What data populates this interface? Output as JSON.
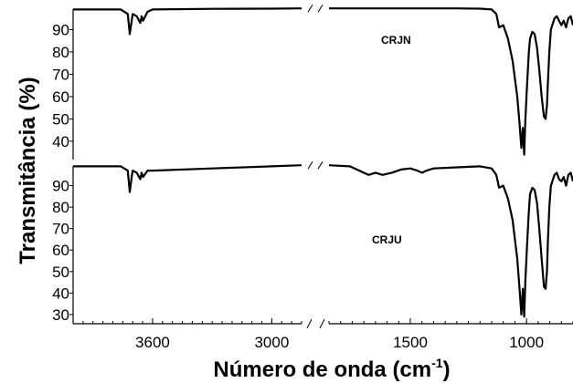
{
  "chart_data": {
    "type": "line",
    "ylabel": "Transmitância (%)",
    "xlabel_main": "Número de onda (cm",
    "xlabel_sup": "-1",
    "xlabel_close": ")",
    "x_ticks": [
      {
        "label": "3600",
        "value": 3600
      },
      {
        "label": "3000",
        "value": 3000
      },
      {
        "label": "1500",
        "value": 1500
      },
      {
        "label": "1000",
        "value": 1000
      }
    ],
    "x_segments": [
      {
        "range": [
          4000,
          2850
        ]
      },
      {
        "range": [
          1850,
          800
        ]
      }
    ],
    "panels": [
      {
        "label": "CRJN",
        "yticks": [
          40,
          50,
          60,
          70,
          80,
          90
        ],
        "ylim": [
          33,
          100
        ],
        "x": [
          4000,
          3760,
          3725,
          3715,
          3705,
          3700,
          3680,
          3662,
          3655,
          3648,
          3625,
          3600,
          3300,
          3000,
          2850,
          1850,
          1700,
          1500,
          1300,
          1200,
          1150,
          1130,
          1118,
          1100,
          1080,
          1060,
          1040,
          1030,
          1022,
          1016,
          1010,
          1005,
          998,
          990,
          985,
          975,
          965,
          955,
          945,
          935,
          925,
          918,
          912,
          908,
          902,
          895,
          880,
          870,
          860,
          850,
          840,
          830,
          820,
          810,
          800
        ],
        "y": [
          99,
          99,
          97,
          88,
          94,
          97,
          96,
          93,
          96,
          94,
          98,
          99,
          99.3,
          99.4,
          99.5,
          99.5,
          99.5,
          99.5,
          99.5,
          99.4,
          99,
          97,
          91,
          92,
          86,
          76,
          60,
          48,
          37,
          46,
          34,
          50,
          65,
          80,
          86,
          89,
          88,
          82,
          72,
          60,
          51,
          50,
          56,
          66,
          80,
          90,
          95,
          96,
          94,
          92,
          94,
          91,
          95,
          96,
          92
        ]
      },
      {
        "label": "CRJU",
        "yticks": [
          30,
          40,
          50,
          60,
          70,
          80,
          90
        ],
        "ylim": [
          27,
          100
        ],
        "x": [
          4000,
          3760,
          3725,
          3715,
          3705,
          3700,
          3680,
          3662,
          3655,
          3648,
          3625,
          3600,
          3300,
          3000,
          2850,
          1850,
          1760,
          1720,
          1680,
          1650,
          1620,
          1580,
          1540,
          1500,
          1470,
          1450,
          1430,
          1400,
          1300,
          1200,
          1150,
          1130,
          1118,
          1100,
          1080,
          1060,
          1040,
          1030,
          1022,
          1016,
          1010,
          1005,
          998,
          990,
          985,
          975,
          965,
          955,
          945,
          935,
          925,
          918,
          912,
          908,
          902,
          895,
          880,
          870,
          860,
          850,
          840,
          830,
          820,
          810,
          800
        ],
        "y": [
          99,
          99,
          97,
          87,
          94,
          97,
          96,
          93,
          96,
          94,
          97,
          97,
          98,
          99,
          99.5,
          99.5,
          99,
          97,
          95,
          96,
          95,
          96,
          97.5,
          98,
          97,
          96,
          97,
          98,
          98.5,
          99,
          98,
          95,
          89,
          90,
          84,
          74,
          56,
          42,
          30,
          42,
          29,
          46,
          62,
          78,
          86,
          89,
          88,
          82,
          70,
          56,
          43,
          42,
          50,
          64,
          80,
          90,
          95,
          96,
          93,
          92,
          94,
          90,
          95,
          96,
          92
        ]
      }
    ]
  }
}
